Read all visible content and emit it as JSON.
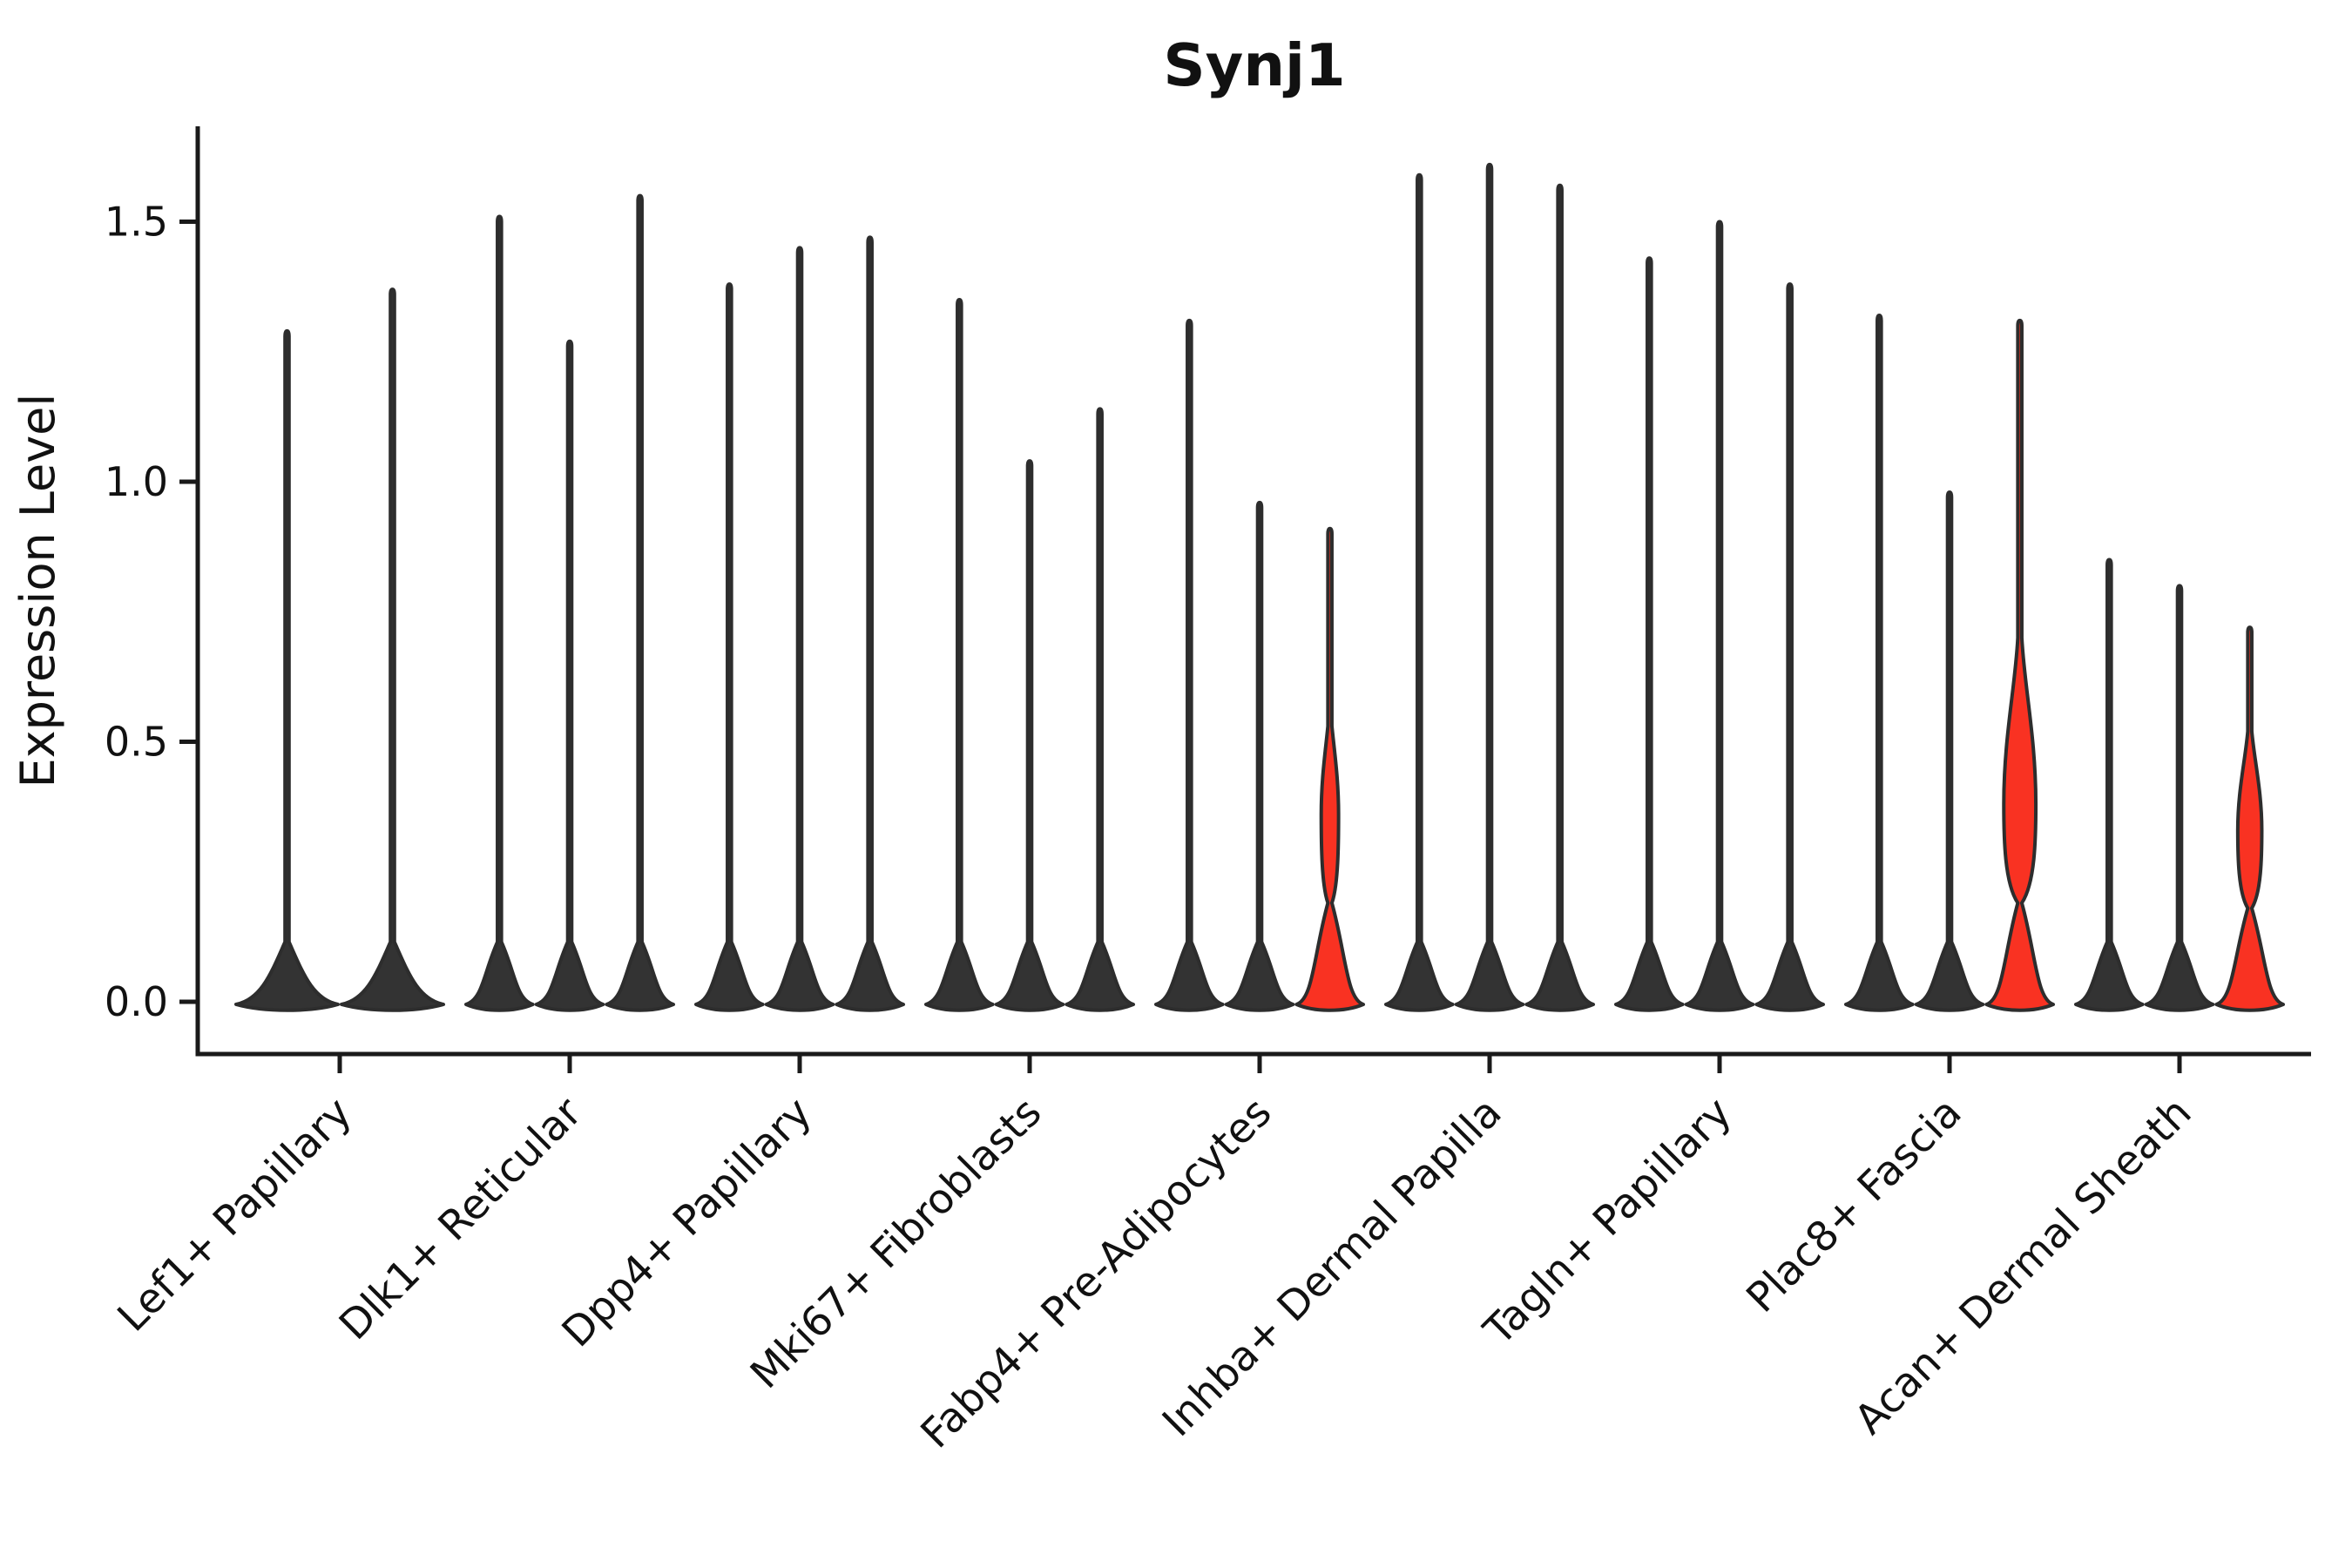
{
  "chart_data": {
    "type": "violin",
    "title": "Synj1",
    "ylabel": "Expression Level",
    "xlabel": "",
    "ytick_labels": [
      "0.0",
      "0.5",
      "1.0",
      "1.5"
    ],
    "ytick_values": [
      0,
      0.5,
      1.0,
      1.5
    ],
    "ylim": [
      0,
      1.68
    ],
    "grid": "off",
    "legend_position": "none",
    "colors": {
      "background": "#ffffff",
      "axis": "#1a1a1a",
      "text": "#111111",
      "violin_outline": "#2d2d2d",
      "violin_fill_dark": "#333333",
      "violin_fill_highlight": "#f93222"
    },
    "categories": [
      "Lef1+ Papillary",
      "Dlk1+ Reticular",
      "Dpp4+ Papillary",
      "Mki67+ Fibroblasts",
      "Fabp4+ Pre-Adipocytes",
      "Inhba+ Dermal Papilla",
      "Tagln+ Papillary",
      "Plac8+ Fascia",
      "Acan+ Dermal Sheath"
    ],
    "groups": [
      {
        "category": "Lef1+ Papillary",
        "violins": [
          {
            "max": 1.29,
            "fill": "dark"
          },
          {
            "max": 1.37,
            "fill": "dark"
          }
        ]
      },
      {
        "category": "Dlk1+ Reticular",
        "violins": [
          {
            "max": 1.51,
            "fill": "dark"
          },
          {
            "max": 1.27,
            "fill": "dark"
          },
          {
            "max": 1.55,
            "fill": "dark"
          }
        ]
      },
      {
        "category": "Dpp4+ Papillary",
        "violins": [
          {
            "max": 1.38,
            "fill": "dark"
          },
          {
            "max": 1.45,
            "fill": "dark"
          },
          {
            "max": 1.47,
            "fill": "dark"
          }
        ]
      },
      {
        "category": "Mki67+ Fibroblasts",
        "violins": [
          {
            "max": 1.35,
            "fill": "dark"
          },
          {
            "max": 1.04,
            "fill": "dark"
          },
          {
            "max": 1.14,
            "fill": "dark"
          }
        ]
      },
      {
        "category": "Fabp4+ Pre-Adipocytes",
        "violins": [
          {
            "max": 1.31,
            "fill": "dark"
          },
          {
            "max": 0.96,
            "fill": "dark"
          },
          {
            "max": 0.91,
            "fill": "highlight",
            "bulge": {
              "bottom": 0.19,
              "peak": 0.36,
              "top": 0.53,
              "halfwidth_frac": 0.26
            }
          }
        ]
      },
      {
        "category": "Inhba+ Dermal Papilla",
        "violins": [
          {
            "max": 1.59,
            "fill": "dark"
          },
          {
            "max": 1.61,
            "fill": "dark"
          },
          {
            "max": 1.57,
            "fill": "dark"
          }
        ]
      },
      {
        "category": "Tagln+ Papillary",
        "violins": [
          {
            "max": 1.43,
            "fill": "dark"
          },
          {
            "max": 1.5,
            "fill": "dark"
          },
          {
            "max": 1.38,
            "fill": "dark"
          }
        ]
      },
      {
        "category": "Plac8+ Fascia",
        "violins": [
          {
            "max": 1.32,
            "fill": "dark"
          },
          {
            "max": 0.98,
            "fill": "dark"
          },
          {
            "max": 1.31,
            "fill": "highlight",
            "bulge": {
              "bottom": 0.19,
              "peak": 0.38,
              "top": 0.7,
              "halfwidth_frac": 0.48
            }
          }
        ]
      },
      {
        "category": "Acan+ Dermal Sheath",
        "violins": [
          {
            "max": 0.85,
            "fill": "dark"
          },
          {
            "max": 0.8,
            "fill": "dark"
          },
          {
            "max": 0.72,
            "fill": "highlight",
            "bulge": {
              "bottom": 0.18,
              "peak": 0.33,
              "top": 0.52,
              "halfwidth_frac": 0.36
            }
          }
        ]
      }
    ]
  }
}
